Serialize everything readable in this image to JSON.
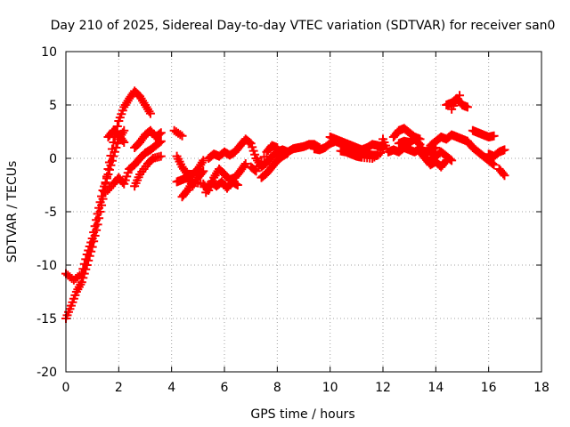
{
  "chart_data": {
    "type": "scatter",
    "title": "Day 210 of 2025, Sidereal Day-to-day VTEC variation (SDTVAR) for receiver san0",
    "xlabel": "GPS time / hours",
    "ylabel": "SDTVAR / TECUs",
    "xlim": [
      0,
      18
    ],
    "ylim": [
      -20,
      10
    ],
    "xticks": [
      "0",
      "2",
      "4",
      "6",
      "8",
      "10",
      "12",
      "14",
      "16",
      "18"
    ],
    "yticks": [
      "10",
      "5",
      "0",
      "-5",
      "-10",
      "-15",
      "-20"
    ],
    "grid": true,
    "marker": "+",
    "color": "#ff0000",
    "series": [
      {
        "name": "SDTVAR",
        "points": [
          [
            0.0,
            -15.0
          ],
          [
            0.2,
            -13.8
          ],
          [
            0.4,
            -12.5
          ],
          [
            0.6,
            -11.6
          ],
          [
            0.8,
            -10.0
          ],
          [
            1.0,
            -8.3
          ],
          [
            1.2,
            -6.2
          ],
          [
            1.4,
            -3.8
          ],
          [
            1.6,
            -1.0
          ],
          [
            1.8,
            1.5
          ],
          [
            2.0,
            3.5
          ],
          [
            2.2,
            4.8
          ],
          [
            2.4,
            5.6
          ],
          [
            2.6,
            6.3
          ],
          [
            2.8,
            5.8
          ],
          [
            3.0,
            5.0
          ],
          [
            3.2,
            4.2
          ],
          [
            0.0,
            -10.8
          ],
          [
            0.3,
            -11.4
          ],
          [
            0.6,
            -10.8
          ],
          [
            0.8,
            -9.0
          ],
          [
            1.0,
            -7.5
          ],
          [
            1.2,
            -5.2
          ],
          [
            1.4,
            -3.0
          ],
          [
            1.6,
            -1.5
          ],
          [
            1.8,
            0.2
          ],
          [
            2.0,
            1.8
          ],
          [
            2.2,
            2.6
          ],
          [
            1.6,
            2.0
          ],
          [
            1.8,
            2.6
          ],
          [
            2.0,
            2.2
          ],
          [
            2.2,
            1.5
          ],
          [
            1.5,
            -3.2
          ],
          [
            1.8,
            -2.4
          ],
          [
            2.0,
            -1.8
          ],
          [
            2.2,
            -2.4
          ],
          [
            2.4,
            -1.0
          ],
          [
            2.6,
            -0.6
          ],
          [
            2.8,
            0.0
          ],
          [
            3.0,
            0.5
          ],
          [
            3.2,
            0.8
          ],
          [
            3.4,
            1.2
          ],
          [
            3.6,
            1.6
          ],
          [
            2.6,
            1.0
          ],
          [
            2.8,
            1.5
          ],
          [
            3.0,
            2.2
          ],
          [
            3.2,
            2.6
          ],
          [
            3.4,
            2.0
          ],
          [
            3.6,
            2.4
          ],
          [
            4.1,
            2.6
          ],
          [
            4.4,
            2.1
          ],
          [
            2.6,
            -2.6
          ],
          [
            2.8,
            -1.5
          ],
          [
            3.1,
            -0.5
          ],
          [
            3.3,
            0.0
          ],
          [
            3.6,
            0.2
          ],
          [
            4.2,
            0.2
          ],
          [
            4.4,
            -0.8
          ],
          [
            4.6,
            -1.5
          ],
          [
            4.8,
            -1.5
          ],
          [
            5.0,
            -1.0
          ],
          [
            5.2,
            -0.2
          ],
          [
            4.2,
            -2.2
          ],
          [
            4.4,
            -2.0
          ],
          [
            4.6,
            -1.8
          ],
          [
            4.8,
            -2.6
          ],
          [
            5.0,
            -1.8
          ],
          [
            5.2,
            -1.2
          ],
          [
            4.4,
            -3.6
          ],
          [
            4.6,
            -3.0
          ],
          [
            4.8,
            -2.2
          ],
          [
            5.2,
            -2.4
          ],
          [
            5.4,
            -3.0
          ],
          [
            5.6,
            -1.8
          ],
          [
            5.8,
            -1.0
          ],
          [
            6.0,
            -1.5
          ],
          [
            6.2,
            -2.0
          ],
          [
            6.4,
            -1.8
          ],
          [
            6.6,
            -1.2
          ],
          [
            6.8,
            -0.5
          ],
          [
            5.3,
            -3.2
          ],
          [
            5.5,
            -2.2
          ],
          [
            5.7,
            -2.6
          ],
          [
            5.9,
            -2.2
          ],
          [
            6.1,
            -2.8
          ],
          [
            6.3,
            -2.2
          ],
          [
            6.5,
            -2.5
          ],
          [
            5.4,
            0.0
          ],
          [
            5.6,
            0.4
          ],
          [
            5.8,
            0.2
          ],
          [
            6.0,
            0.6
          ],
          [
            6.2,
            0.3
          ],
          [
            6.4,
            0.6
          ],
          [
            6.6,
            1.2
          ],
          [
            6.8,
            1.8
          ],
          [
            7.0,
            1.4
          ],
          [
            7.2,
            0.0
          ],
          [
            7.4,
            -0.8
          ],
          [
            7.6,
            -0.4
          ],
          [
            7.8,
            0.2
          ],
          [
            8.0,
            0.6
          ],
          [
            8.2,
            0.8
          ],
          [
            8.4,
            0.6
          ],
          [
            8.6,
            0.9
          ],
          [
            8.8,
            1.0
          ],
          [
            9.0,
            1.1
          ],
          [
            9.2,
            1.3
          ],
          [
            9.4,
            1.3
          ],
          [
            9.6,
            1.0
          ],
          [
            7.4,
            -1.8
          ],
          [
            7.6,
            -1.4
          ],
          [
            7.8,
            -0.8
          ],
          [
            8.0,
            -0.2
          ],
          [
            8.2,
            0.2
          ],
          [
            8.4,
            0.5
          ],
          [
            7.0,
            -0.8
          ],
          [
            7.2,
            -1.2
          ],
          [
            7.6,
            0.6
          ],
          [
            7.8,
            1.2
          ],
          [
            8.0,
            1.0
          ],
          [
            9.4,
            0.9
          ],
          [
            9.6,
            0.8
          ],
          [
            9.8,
            1.0
          ],
          [
            10.0,
            1.4
          ],
          [
            10.2,
            1.6
          ],
          [
            10.4,
            1.4
          ],
          [
            10.6,
            1.3
          ],
          [
            10.8,
            1.2
          ],
          [
            11.0,
            1.0
          ],
          [
            11.2,
            0.8
          ],
          [
            11.4,
            1.0
          ],
          [
            11.6,
            1.3
          ],
          [
            11.8,
            1.2
          ],
          [
            12.0,
            1.0
          ],
          [
            10.0,
            2.0
          ],
          [
            10.2,
            1.8
          ],
          [
            10.4,
            1.6
          ],
          [
            10.6,
            1.4
          ],
          [
            10.8,
            1.2
          ],
          [
            11.0,
            0.8
          ],
          [
            11.2,
            0.5
          ],
          [
            11.4,
            0.4
          ],
          [
            11.6,
            0.3
          ],
          [
            11.8,
            0.3
          ],
          [
            10.4,
            0.7
          ],
          [
            10.6,
            0.6
          ],
          [
            10.8,
            0.4
          ],
          [
            11.0,
            0.2
          ],
          [
            11.2,
            0.1
          ],
          [
            11.6,
            0.0
          ],
          [
            11.9,
            0.5
          ],
          [
            12.0,
            1.8
          ],
          [
            12.2,
            0.6
          ],
          [
            12.4,
            0.8
          ],
          [
            12.6,
            0.6
          ],
          [
            12.8,
            1.0
          ],
          [
            13.0,
            0.8
          ],
          [
            13.2,
            0.6
          ],
          [
            13.4,
            0.9
          ],
          [
            13.6,
            0.6
          ],
          [
            13.8,
            0.8
          ],
          [
            14.0,
            1.0
          ],
          [
            12.4,
            2.0
          ],
          [
            12.6,
            2.6
          ],
          [
            12.8,
            2.8
          ],
          [
            13.0,
            2.4
          ],
          [
            13.2,
            2.0
          ],
          [
            13.4,
            1.8
          ],
          [
            12.6,
            1.4
          ],
          [
            12.8,
            1.6
          ],
          [
            13.0,
            1.5
          ],
          [
            13.2,
            1.8
          ],
          [
            13.4,
            1.3
          ],
          [
            13.8,
            0.0
          ],
          [
            14.0,
            0.2
          ],
          [
            14.2,
            0.6
          ],
          [
            14.4,
            0.2
          ],
          [
            14.6,
            -0.2
          ],
          [
            13.4,
            0.6
          ],
          [
            13.6,
            0.0
          ],
          [
            13.8,
            -0.6
          ],
          [
            14.0,
            -0.3
          ],
          [
            14.2,
            -0.8
          ],
          [
            14.4,
            -0.2
          ],
          [
            13.8,
            1.2
          ],
          [
            14.0,
            1.6
          ],
          [
            14.2,
            2.0
          ],
          [
            14.4,
            1.8
          ],
          [
            14.6,
            2.2
          ],
          [
            14.8,
            2.0
          ],
          [
            15.0,
            1.8
          ],
          [
            15.2,
            1.6
          ],
          [
            15.4,
            1.0
          ],
          [
            15.6,
            0.6
          ],
          [
            15.8,
            0.2
          ],
          [
            16.0,
            -0.2
          ],
          [
            16.2,
            -0.6
          ],
          [
            14.4,
            5.0
          ],
          [
            14.6,
            5.2
          ],
          [
            14.8,
            5.6
          ],
          [
            15.0,
            5.0
          ],
          [
            15.2,
            4.8
          ],
          [
            14.6,
            4.6
          ],
          [
            14.9,
            5.9
          ],
          [
            15.4,
            2.6
          ],
          [
            15.6,
            2.4
          ],
          [
            15.8,
            2.2
          ],
          [
            16.0,
            2.0
          ],
          [
            16.2,
            2.1
          ],
          [
            16.0,
            0.4
          ],
          [
            16.2,
            0.2
          ],
          [
            16.4,
            0.6
          ],
          [
            16.6,
            0.8
          ],
          [
            16.4,
            -1.0
          ],
          [
            16.6,
            -1.6
          ]
        ]
      }
    ]
  }
}
